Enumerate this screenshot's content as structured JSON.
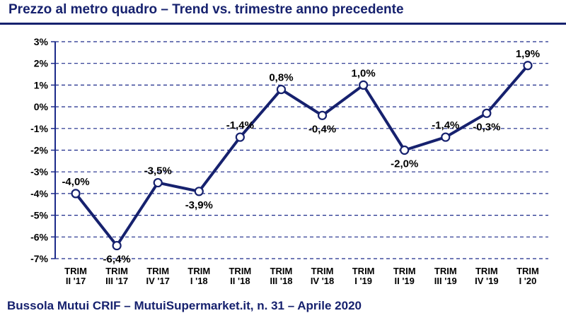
{
  "title": "Prezzo al metro quadro – Trend vs. trimestre anno precedente",
  "footer": "Bussola Mutui CRIF – MutuiSupermarket.it, n. 31 – Aprile 2020",
  "colors": {
    "line": "#16216e",
    "grid": "#1c2a8a",
    "marker_fill": "#ffffff",
    "title": "#16216e"
  },
  "chart_data": {
    "type": "line",
    "title": "Prezzo al metro quadro – Trend vs. trimestre anno precedente",
    "xlabel": "",
    "ylabel": "",
    "ylim": [
      -7,
      3
    ],
    "yticks": [
      3,
      2,
      1,
      0,
      -1,
      -2,
      -3,
      -4,
      -5,
      -6,
      -7
    ],
    "ytick_labels": [
      "3%",
      "2%",
      "1%",
      "0%",
      "-1%",
      "-2%",
      "-3%",
      "-4%",
      "-5%",
      "-6%",
      "-7%"
    ],
    "grid": "horizontal dashed",
    "categories": [
      {
        "line1": "TRIM",
        "line2": "II '17"
      },
      {
        "line1": "TRIM",
        "line2": "III '17"
      },
      {
        "line1": "TRIM",
        "line2": "IV '17"
      },
      {
        "line1": "TRIM",
        "line2": "I '18"
      },
      {
        "line1": "TRIM",
        "line2": "II '18"
      },
      {
        "line1": "TRIM",
        "line2": "III '18"
      },
      {
        "line1": "TRIM",
        "line2": "IV '18"
      },
      {
        "line1": "TRIM",
        "line2": "I '19"
      },
      {
        "line1": "TRIM",
        "line2": "II '19"
      },
      {
        "line1": "TRIM",
        "line2": "III '19"
      },
      {
        "line1": "TRIM",
        "line2": "IV '19"
      },
      {
        "line1": "TRIM",
        "line2": "I '20"
      }
    ],
    "values": [
      -4.0,
      -6.4,
      -3.5,
      -3.9,
      -1.4,
      0.8,
      -0.4,
      1.0,
      -2.0,
      -1.4,
      -0.3,
      1.9
    ],
    "data_labels": [
      "-4,0%",
      "-6,4%",
      "-3,5%",
      "-3,9%",
      "-1,4%",
      "0,8%",
      "-0,4%",
      "1,0%",
      "-2,0%",
      "-1,4%",
      "-0,3%",
      "1,9%"
    ],
    "label_positions": [
      "above",
      "below",
      "above",
      "below",
      "above",
      "above",
      "below",
      "above",
      "below",
      "above",
      "below",
      "above"
    ]
  }
}
